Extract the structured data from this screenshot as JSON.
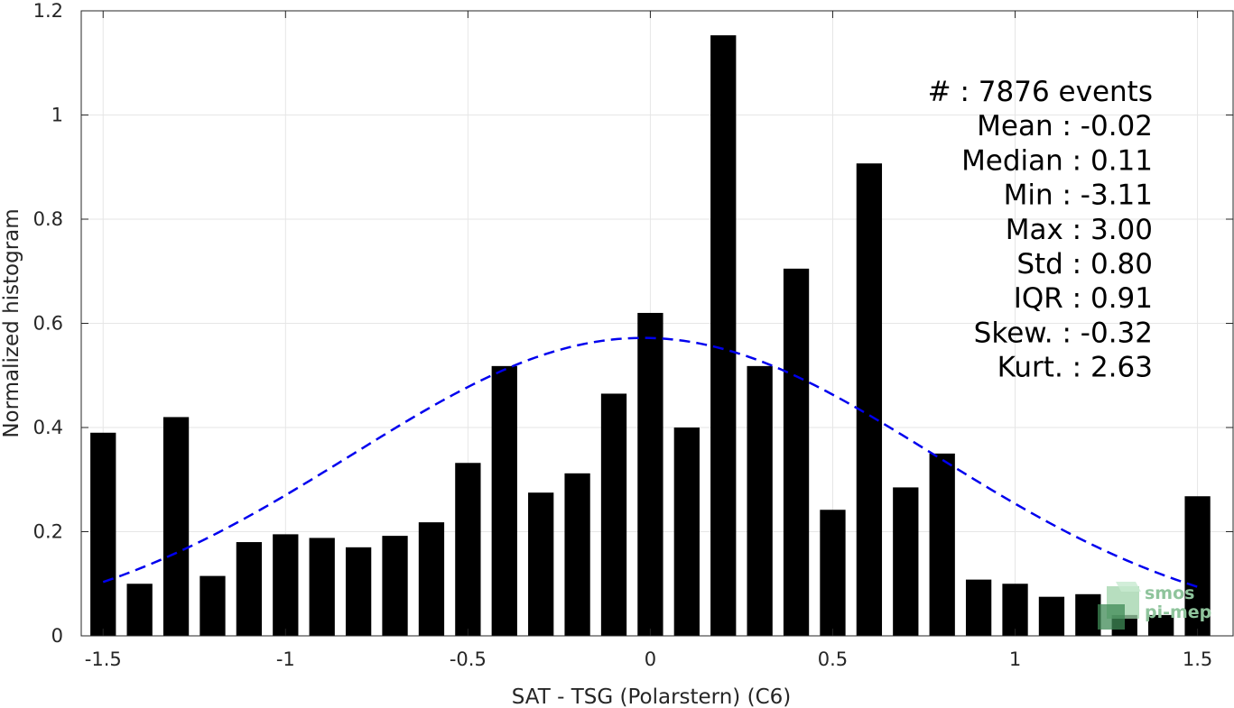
{
  "chart_data": {
    "type": "bar",
    "xlabel": "SAT - TSG (Polarstern) (C6)",
    "ylabel": "Normalized histogram",
    "xlim": [
      -1.56,
      1.6
    ],
    "ylim": [
      0,
      1.2
    ],
    "xticks": [
      -1.5,
      -1,
      -0.5,
      0,
      0.5,
      1,
      1.5
    ],
    "xtick_labels": [
      "-1.5",
      "-1",
      "-0.5",
      "0",
      "0.5",
      "1",
      "1.5"
    ],
    "yticks": [
      0,
      0.2,
      0.4,
      0.6,
      0.8,
      1,
      1.2
    ],
    "ytick_labels": [
      "0",
      "0.2",
      "0.4",
      "0.6",
      "0.8",
      "1",
      "1.2"
    ],
    "grid": true,
    "bar_color": "#000000",
    "bars": {
      "x": [
        -1.5,
        -1.4,
        -1.3,
        -1.2,
        -1.1,
        -1.0,
        -0.9,
        -0.8,
        -0.7,
        -0.6,
        -0.5,
        -0.4,
        -0.3,
        -0.2,
        -0.1,
        0.0,
        0.1,
        0.2,
        0.3,
        0.4,
        0.5,
        0.6,
        0.7,
        0.8,
        0.9,
        1.0,
        1.1,
        1.2,
        1.3,
        1.4,
        1.5
      ],
      "values": [
        0.39,
        0.1,
        0.42,
        0.115,
        0.18,
        0.195,
        0.188,
        0.17,
        0.192,
        0.218,
        0.332,
        0.518,
        0.275,
        0.312,
        0.465,
        0.62,
        0.4,
        1.153,
        0.518,
        0.705,
        0.242,
        0.907,
        0.285,
        0.35,
        0.108,
        0.1,
        0.075,
        0.08,
        0.04,
        0.04,
        0.268
      ]
    },
    "fit_curve": {
      "style": "dashed",
      "color": "#0000ee",
      "mean": -0.02,
      "std": 0.8,
      "peak": 0.572,
      "x_range": [
        -1.5,
        1.5
      ]
    },
    "stats": [
      "#  : 7876 events",
      "Mean : -0.02",
      "Median : 0.11",
      "Min : -3.11",
      "Max : 3.00",
      "Std : 0.80",
      "IQR : 0.91",
      "Skew. : -0.32",
      "Kurt. : 2.63"
    ],
    "logo": {
      "line1": "smos",
      "line2": "pi-mep"
    }
  }
}
